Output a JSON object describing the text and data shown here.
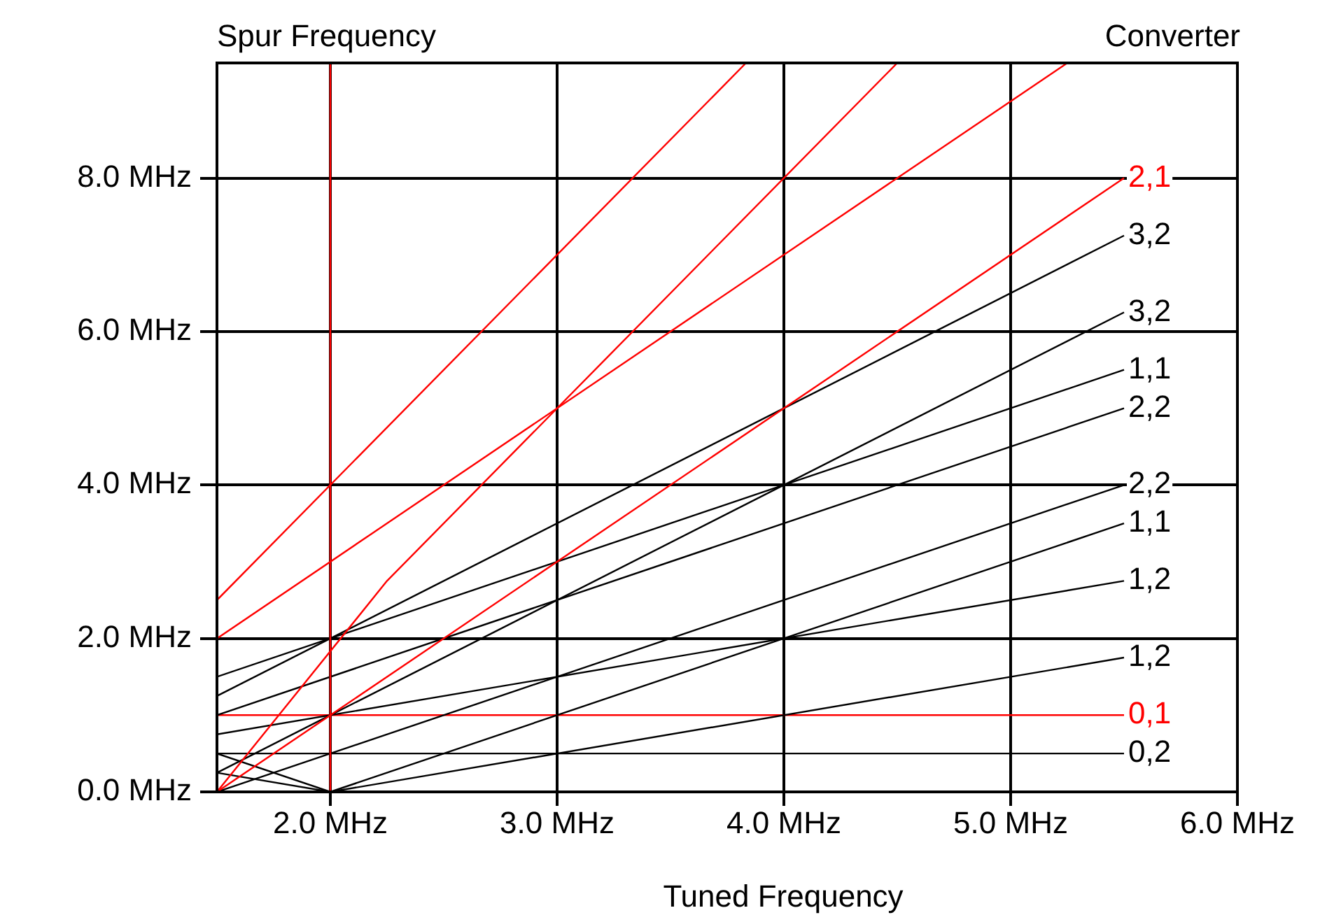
{
  "chart_data": {
    "type": "line",
    "title": "Converter",
    "ylabel": "Spur Frequency",
    "xlabel": "Tuned Frequency",
    "xlim": [
      1.5,
      6
    ],
    "ylim": [
      0,
      9.5
    ],
    "xticks": [
      {
        "value": 2,
        "label": "2.0 MHz"
      },
      {
        "value": 3,
        "label": "3.0 MHz"
      },
      {
        "value": 4,
        "label": "4.0 MHz"
      },
      {
        "value": 5,
        "label": "5.0 MHz"
      },
      {
        "value": 6,
        "label": "6.0 MHz"
      }
    ],
    "yticks": [
      {
        "value": 0,
        "label": "0.0 MHz"
      },
      {
        "value": 2,
        "label": "2.0 MHz"
      },
      {
        "value": 4,
        "label": "4.0 MHz"
      },
      {
        "value": 6,
        "label": "6.0 MHz"
      },
      {
        "value": 8,
        "label": "8.0 MHz"
      }
    ],
    "grid": true,
    "legend": false,
    "marker": "none",
    "series": [
      {
        "color": "#ff0000",
        "x": [
          2,
          2
        ],
        "values": [
          0,
          9.5
        ]
      },
      {
        "color": "#ff0000",
        "x": [
          1.5,
          3.833
        ],
        "values": [
          2.5,
          9.5
        ]
      },
      {
        "color": "#ff0000",
        "x": [
          1.5,
          5.25
        ],
        "values": [
          2,
          9.5
        ]
      },
      {
        "color": "#ff0000",
        "x": [
          1.5,
          2.25,
          4.5
        ],
        "values": [
          0,
          2.75,
          9.5
        ]
      },
      {
        "name": "2,1",
        "color": "#ff0000",
        "x": [
          1.5,
          5.5
        ],
        "values": [
          0,
          8
        ]
      },
      {
        "name": "3,2",
        "color": "#000000",
        "x": [
          1.5,
          5.5
        ],
        "values": [
          1.25,
          7.25
        ]
      },
      {
        "name": "3,2",
        "color": "#000000",
        "x": [
          1.5,
          5.5
        ],
        "values": [
          0.25,
          6.25
        ]
      },
      {
        "name": "1,1",
        "color": "#000000",
        "x": [
          1.5,
          5.5
        ],
        "values": [
          1.5,
          5.5
        ]
      },
      {
        "name": "2,2",
        "color": "#000000",
        "x": [
          1.5,
          5.5
        ],
        "values": [
          1,
          5
        ]
      },
      {
        "name": "2,2",
        "color": "#000000",
        "x": [
          1.5,
          5.5
        ],
        "values": [
          0,
          4
        ]
      },
      {
        "name": "1,1",
        "color": "#000000",
        "x": [
          1.5,
          2,
          5.5
        ],
        "values": [
          0.5,
          0,
          3.5
        ]
      },
      {
        "name": "1,2",
        "color": "#000000",
        "x": [
          1.5,
          5.5
        ],
        "values": [
          0.75,
          2.75
        ]
      },
      {
        "name": "1,2",
        "color": "#000000",
        "x": [
          1.5,
          2,
          5.5
        ],
        "values": [
          0.25,
          0,
          1.75
        ]
      },
      {
        "name": "0,1",
        "color": "#ff0000",
        "x": [
          1.5,
          5.5
        ],
        "values": [
          1,
          1
        ]
      },
      {
        "name": "0,2",
        "color": "#000000",
        "x": [
          1.5,
          5.5
        ],
        "values": [
          0.5,
          0.5
        ]
      }
    ]
  }
}
